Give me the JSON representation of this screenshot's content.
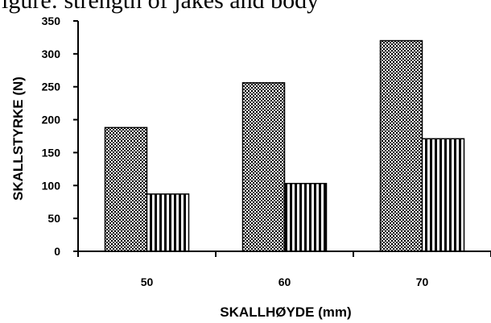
{
  "caption": "igure: strength of jakes and body",
  "chart_data": {
    "type": "bar",
    "categories": [
      "50",
      "60",
      "70"
    ],
    "series": [
      {
        "pattern": "checker",
        "values": [
          188,
          256,
          320
        ]
      },
      {
        "pattern": "vertical-stripes",
        "values": [
          87,
          103,
          171
        ]
      }
    ],
    "xlabel": "SKALLHØYDE (mm)",
    "ylabel": "SKALLSTYRKE (N)",
    "ylim": [
      0,
      350
    ],
    "yticks": [
      "0",
      "50",
      "100",
      "150",
      "200",
      "250",
      "300",
      "350"
    ],
    "grid": false
  }
}
